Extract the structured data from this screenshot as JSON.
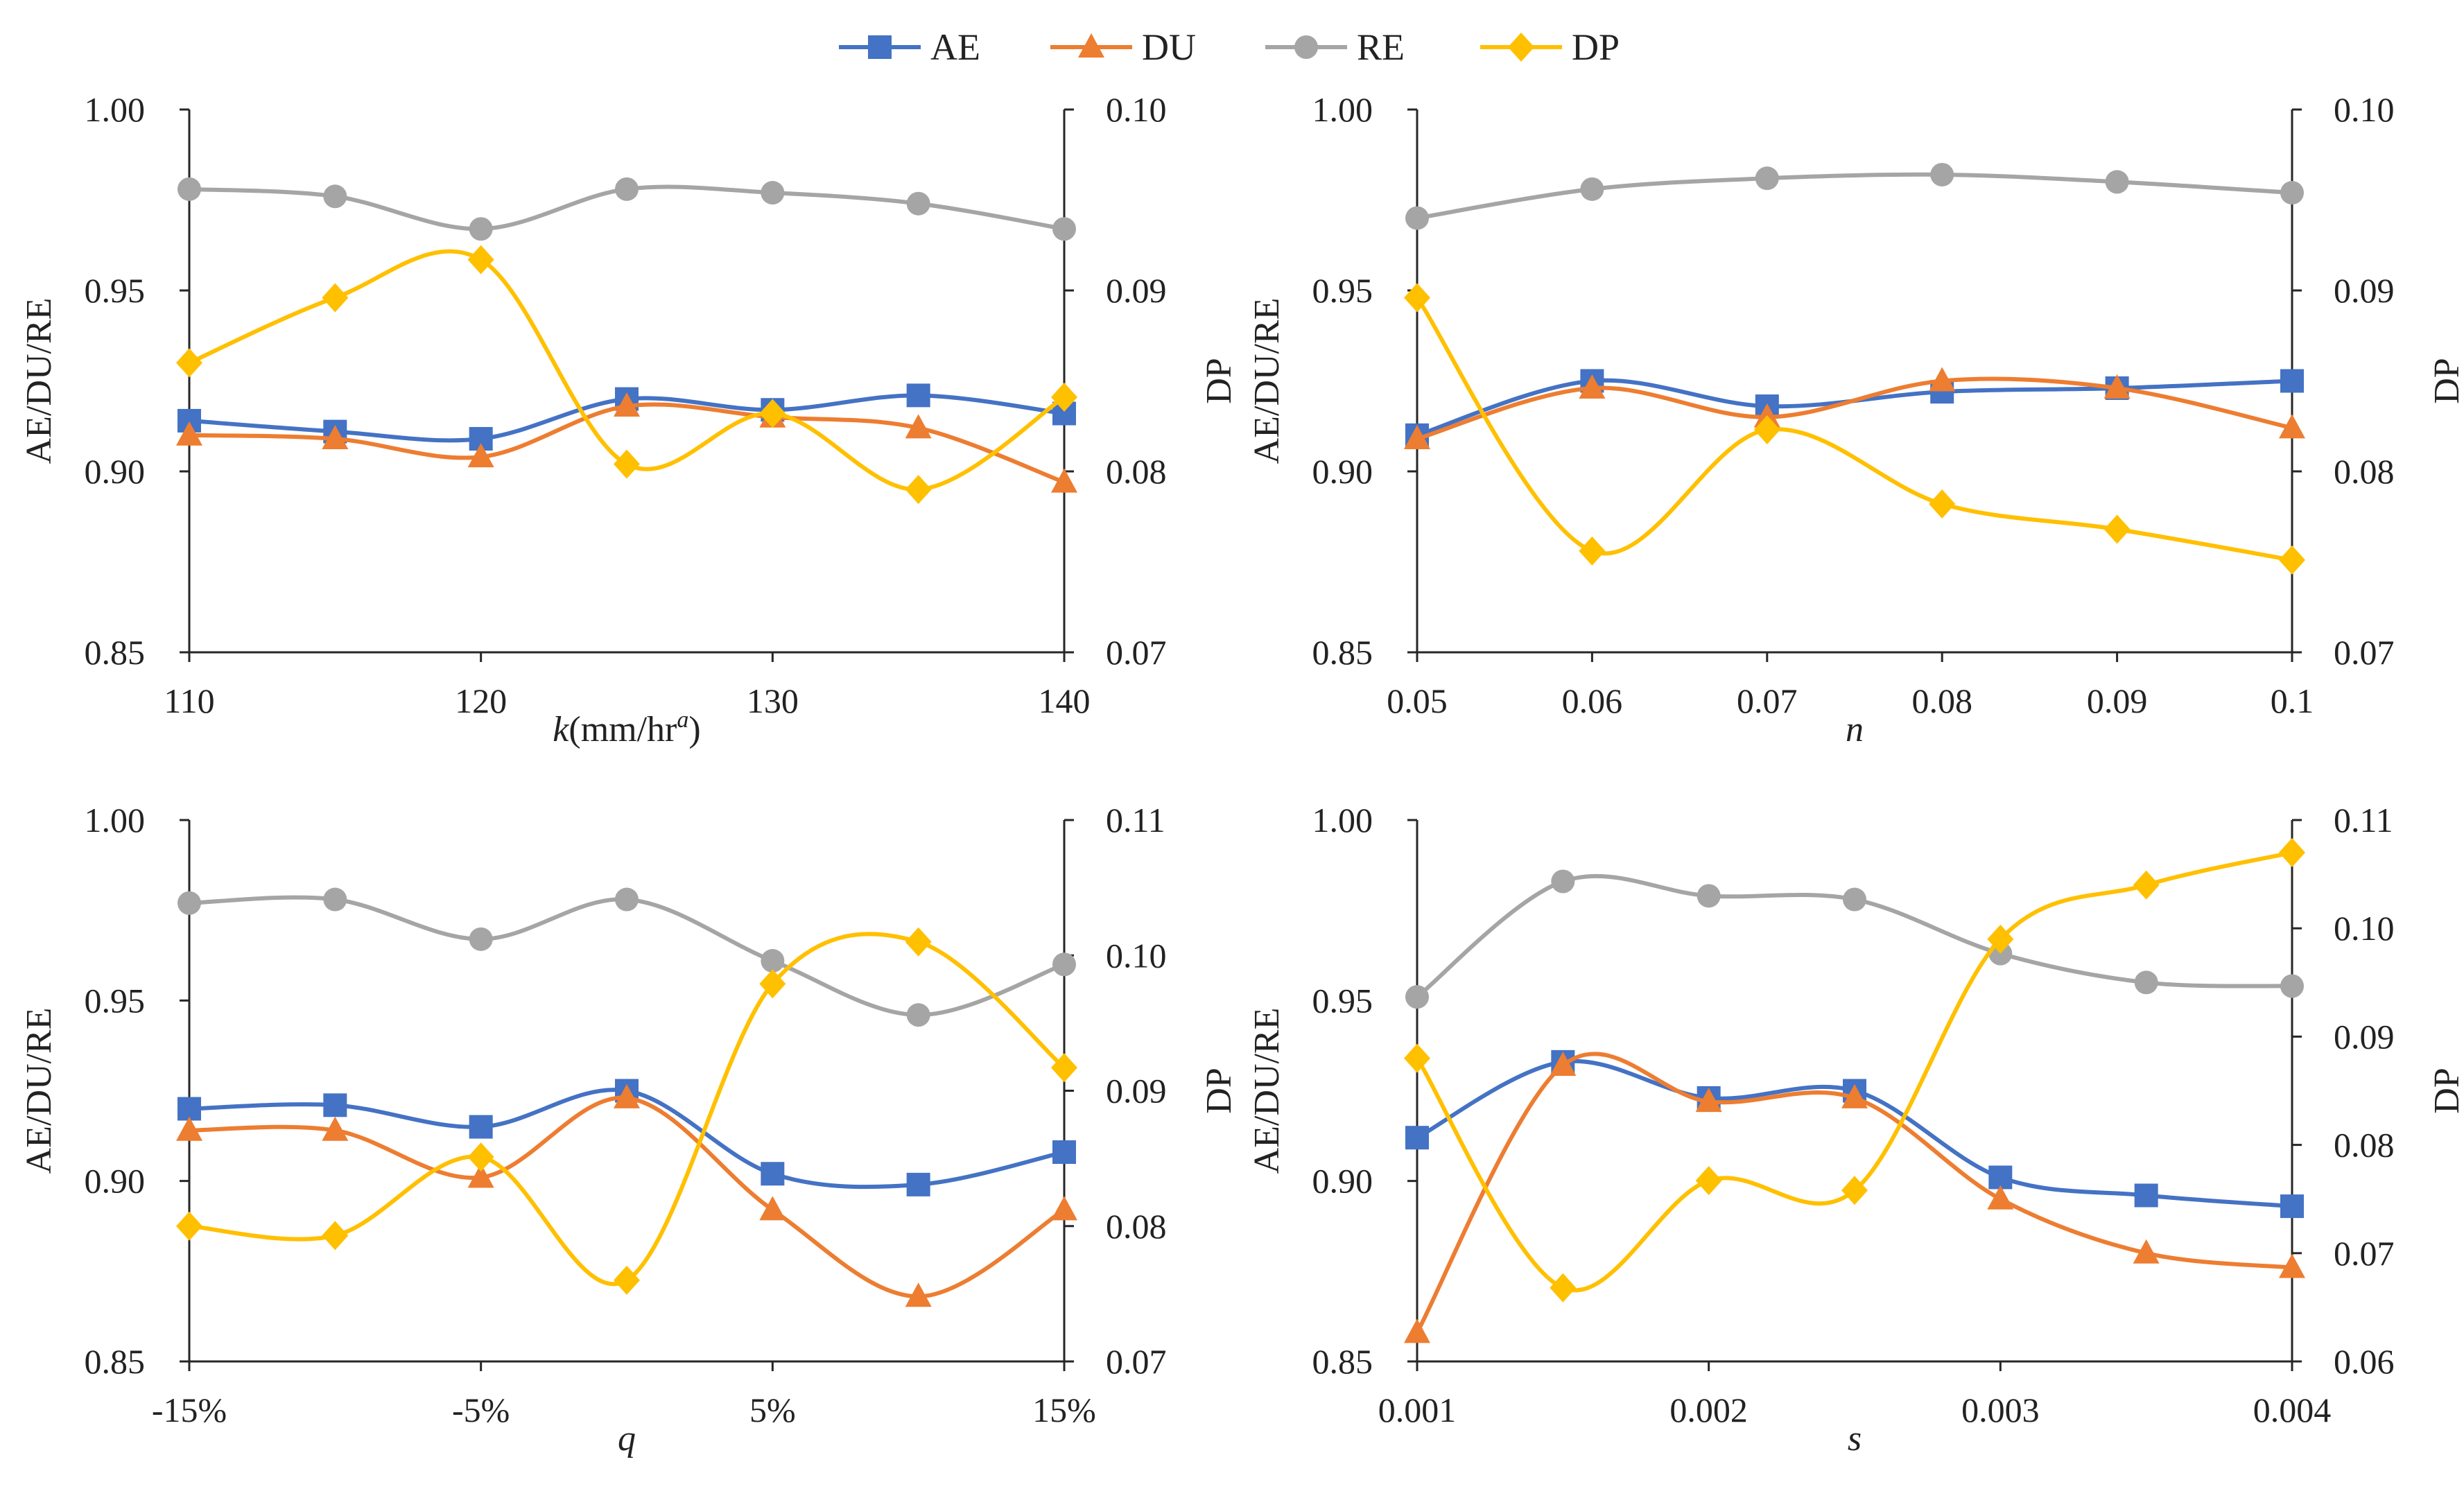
{
  "legend": [
    {
      "key": "AE",
      "label": "AE",
      "color": "#4472C4",
      "marker": "square"
    },
    {
      "key": "DU",
      "label": "DU",
      "color": "#ED7D31",
      "marker": "triangle"
    },
    {
      "key": "RE",
      "label": "RE",
      "color": "#A5A5A5",
      "marker": "circle"
    },
    {
      "key": "DP",
      "label": "DP",
      "color": "#FFC000",
      "marker": "diamond"
    }
  ],
  "chart_data": [
    {
      "type": "line",
      "panel": "top-left",
      "xlabel": "k(mm/hr^a)",
      "xlabel_main": "k",
      "xlabel_unit": "(mm/hr",
      "xlabel_sup": "a",
      "xlabel_close": ")",
      "ylabel_left": "AE/DU/RE",
      "ylabel_right": "DP",
      "x_tick_labels": [
        "110",
        "120",
        "130",
        "140"
      ],
      "x_tick_positions": [
        110,
        120,
        130,
        140
      ],
      "xlim": [
        110,
        140
      ],
      "x": [
        110,
        115,
        120,
        125,
        130,
        135,
        140
      ],
      "ylim_left": [
        0.85,
        1.0
      ],
      "y_ticks_left": [
        "0.85",
        "0.90",
        "0.95",
        "1.00"
      ],
      "ylim_right": [
        0.07,
        0.1
      ],
      "y_ticks_right": [
        "0.07",
        "0.08",
        "0.09",
        "0.10"
      ],
      "series": [
        {
          "name": "AE",
          "axis": "left",
          "values": [
            0.914,
            0.911,
            0.909,
            0.92,
            0.917,
            0.921,
            0.916
          ]
        },
        {
          "name": "DU",
          "axis": "left",
          "values": [
            0.91,
            0.909,
            0.904,
            0.918,
            0.915,
            0.912,
            0.897
          ]
        },
        {
          "name": "RE",
          "axis": "left",
          "values": [
            0.978,
            0.976,
            0.967,
            0.978,
            0.977,
            0.974,
            0.967
          ]
        },
        {
          "name": "DP",
          "axis": "right",
          "values": [
            0.086,
            0.0896,
            0.0917,
            0.0804,
            0.0832,
            0.079,
            0.0841
          ]
        }
      ]
    },
    {
      "type": "line",
      "panel": "top-right",
      "xlabel": "n",
      "xlabel_main": "n",
      "ylabel_left": "AE/DU/RE",
      "ylabel_right": "DP",
      "x_tick_labels": [
        "0.05",
        "0.06",
        "0.07",
        "0.08",
        "0.09",
        "0.1"
      ],
      "x_tick_positions": [
        0.05,
        0.06,
        0.07,
        0.08,
        0.09,
        0.1
      ],
      "xlim": [
        0.05,
        0.1
      ],
      "x": [
        0.05,
        0.06,
        0.07,
        0.08,
        0.09,
        0.1
      ],
      "ylim_left": [
        0.85,
        1.0
      ],
      "y_ticks_left": [
        "0.85",
        "0.90",
        "0.95",
        "1.00"
      ],
      "ylim_right": [
        0.07,
        0.1
      ],
      "y_ticks_right": [
        "0.07",
        "0.08",
        "0.09",
        "0.10"
      ],
      "series": [
        {
          "name": "AE",
          "axis": "left",
          "values": [
            0.91,
            0.925,
            0.918,
            0.922,
            0.923,
            0.925
          ]
        },
        {
          "name": "DU",
          "axis": "left",
          "values": [
            0.909,
            0.923,
            0.915,
            0.925,
            0.923,
            0.912
          ]
        },
        {
          "name": "RE",
          "axis": "left",
          "values": [
            0.97,
            0.978,
            0.981,
            0.982,
            0.98,
            0.977
          ]
        },
        {
          "name": "DP",
          "axis": "right",
          "values": [
            0.0896,
            0.0756,
            0.0823,
            0.0782,
            0.0768,
            0.0751
          ]
        }
      ]
    },
    {
      "type": "line",
      "panel": "bottom-left",
      "xlabel": "q",
      "xlabel_main": "q",
      "ylabel_left": "AE/DU/RE",
      "ylabel_right": "DP",
      "x_tick_labels": [
        "-15%",
        "-5%",
        "5%",
        "15%"
      ],
      "x_tick_positions": [
        -15,
        -5,
        5,
        15
      ],
      "xlim": [
        -15,
        15
      ],
      "x": [
        -15,
        -10,
        -5,
        0,
        5,
        10,
        15
      ],
      "ylim_left": [
        0.85,
        1.0
      ],
      "y_ticks_left": [
        "0.85",
        "0.90",
        "0.95",
        "1.00"
      ],
      "ylim_right": [
        0.07,
        0.11
      ],
      "y_ticks_right": [
        "0.07",
        "0.08",
        "0.09",
        "0.10",
        "0.11"
      ],
      "series": [
        {
          "name": "AE",
          "axis": "left",
          "values": [
            0.92,
            0.921,
            0.915,
            0.925,
            0.902,
            0.899,
            0.908
          ]
        },
        {
          "name": "DU",
          "axis": "left",
          "values": [
            0.914,
            0.914,
            0.901,
            0.923,
            0.892,
            0.868,
            0.892
          ]
        },
        {
          "name": "RE",
          "axis": "left",
          "values": [
            0.977,
            0.978,
            0.967,
            0.978,
            0.961,
            0.946,
            0.96
          ]
        },
        {
          "name": "DP",
          "axis": "right",
          "values": [
            0.08,
            0.0793,
            0.0851,
            0.076,
            0.0979,
            0.101,
            0.0917
          ]
        }
      ]
    },
    {
      "type": "line",
      "panel": "bottom-right",
      "xlabel": "s",
      "xlabel_main": "s",
      "ylabel_left": "AE/DU/RE",
      "ylabel_right": "DP",
      "x_tick_labels": [
        "0.001",
        "0.002",
        "0.003",
        "0.004"
      ],
      "x_tick_positions": [
        0.001,
        0.002,
        0.003,
        0.004
      ],
      "xlim": [
        0.001,
        0.004
      ],
      "x": [
        0.001,
        0.0015,
        0.002,
        0.0025,
        0.003,
        0.0035,
        0.004
      ],
      "ylim_left": [
        0.85,
        1.0
      ],
      "y_ticks_left": [
        "0.85",
        "0.90",
        "0.95",
        "1.00"
      ],
      "ylim_right": [
        0.06,
        0.11
      ],
      "y_ticks_right": [
        "0.06",
        "0.07",
        "0.08",
        "0.09",
        "0.10",
        "0.11"
      ],
      "series": [
        {
          "name": "AE",
          "axis": "left",
          "values": [
            0.912,
            0.933,
            0.923,
            0.925,
            0.901,
            0.896,
            0.893
          ]
        },
        {
          "name": "DU",
          "axis": "left",
          "values": [
            0.858,
            0.932,
            0.922,
            0.923,
            0.895,
            0.88,
            0.876
          ]
        },
        {
          "name": "RE",
          "axis": "left",
          "values": [
            0.951,
            0.983,
            0.979,
            0.978,
            0.963,
            0.955,
            0.954
          ]
        },
        {
          "name": "DP",
          "axis": "right",
          "values": [
            0.088,
            0.0668,
            0.0767,
            0.0758,
            0.099,
            0.104,
            0.107
          ]
        }
      ]
    }
  ]
}
